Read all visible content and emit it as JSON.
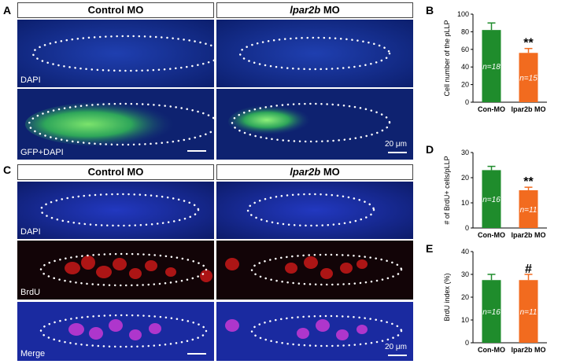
{
  "panel_letters": {
    "a": "A",
    "b": "B",
    "c": "C",
    "d": "D",
    "e": "E"
  },
  "panelA": {
    "control_header": "Control MO",
    "lpar_header_gene": "lpar2b",
    "lpar_header_suffix": " MO",
    "row1_label": "DAPI",
    "row2_label": "GFP+DAPI",
    "scale_text": "20 μm"
  },
  "panelC": {
    "control_header": "Control MO",
    "lpar_header_gene": "lpar2b",
    "lpar_header_suffix": " MO",
    "row1_label": "DAPI",
    "row2_label": "BrdU",
    "row3_label": "Merge",
    "scale_text": "20 μm"
  },
  "colors": {
    "control": "#1f8c2c",
    "morphant": "#f26b1f",
    "dapi": "#1a3aa8",
    "gfp": "#4bd24b",
    "brdu": "#e01515"
  },
  "chart_data": [
    {
      "id": "B",
      "type": "bar",
      "categories": [
        "Con-MO",
        "lpar2b MO"
      ],
      "values": [
        82,
        56
      ],
      "errors": [
        8,
        5
      ],
      "n_labels": [
        "n=18",
        "n=15"
      ],
      "significance": [
        "",
        "**"
      ],
      "ylabel": "Cell number of the pLLP",
      "ylim": [
        0,
        100
      ],
      "yticks": [
        0,
        20,
        40,
        60,
        80,
        100
      ]
    },
    {
      "id": "D",
      "type": "bar",
      "categories": [
        "Con-MO",
        "lpar2b MO"
      ],
      "values": [
        23,
        15
      ],
      "errors": [
        1.5,
        1.2
      ],
      "n_labels": [
        "n=16",
        "n=11"
      ],
      "significance": [
        "",
        "**"
      ],
      "ylabel": "# of BrdU+ cells/pLLP",
      "ylim": [
        0,
        30
      ],
      "yticks": [
        0,
        10,
        20,
        30
      ]
    },
    {
      "id": "E",
      "type": "bar",
      "categories": [
        "Con-MO",
        "lpar2b MO"
      ],
      "values": [
        27.5,
        27.5
      ],
      "errors": [
        2.5,
        2.5
      ],
      "n_labels": [
        "n=16",
        "n=11"
      ],
      "significance": [
        "",
        "#"
      ],
      "ylabel": "BrdU index (%)",
      "ylim": [
        0,
        40
      ],
      "yticks": [
        0,
        10,
        20,
        30,
        40
      ]
    }
  ]
}
